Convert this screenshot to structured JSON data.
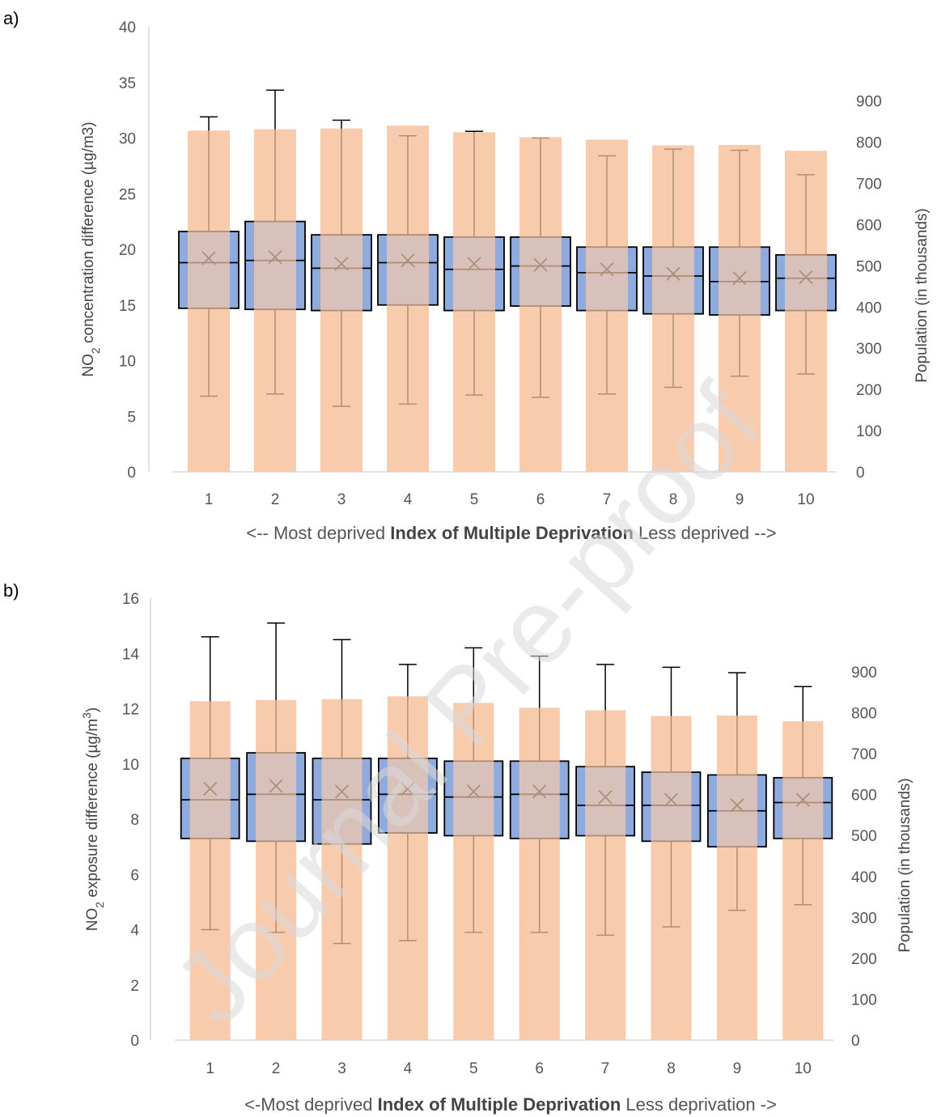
{
  "watermark": "Journal Pre-proof",
  "chart_data": [
    {
      "panel_label": "a)",
      "type": "box+bar",
      "left_axis": {
        "label_prefix": "NO",
        "label_sub": "2",
        "label_suffix": " concentration difference (µg/m3)",
        "ylim": [
          0,
          40
        ],
        "ticks": [
          0,
          5,
          10,
          15,
          20,
          25,
          30,
          35,
          40
        ]
      },
      "right_axis": {
        "label": "Population (in thousands)",
        "ylim": [
          0,
          1080
        ],
        "ticks": [
          0,
          100,
          200,
          300,
          400,
          500,
          600,
          700,
          800,
          900
        ]
      },
      "categories": [
        "1",
        "2",
        "3",
        "4",
        "5",
        "6",
        "7",
        "8",
        "9",
        "10"
      ],
      "x_caption": {
        "left": "<-- Most deprived",
        "bold": "Index of Multiple Deprivation",
        "right": "Less deprived -->"
      },
      "population": [
        828,
        831,
        833,
        840,
        824,
        812,
        806,
        792,
        793,
        779
      ],
      "box": {
        "whisker_low": [
          6.8,
          7.0,
          5.9,
          6.1,
          6.9,
          6.7,
          7.0,
          7.6,
          8.6,
          8.8
        ],
        "q1": [
          14.7,
          14.6,
          14.5,
          15.0,
          14.5,
          14.9,
          14.5,
          14.2,
          14.1,
          14.5
        ],
        "median": [
          18.8,
          19.0,
          18.3,
          18.8,
          18.2,
          18.5,
          17.9,
          17.6,
          17.1,
          17.4
        ],
        "mean": [
          19.2,
          19.3,
          18.7,
          19.0,
          18.7,
          18.6,
          18.2,
          17.8,
          17.4,
          17.5
        ],
        "q3": [
          21.6,
          22.5,
          21.3,
          21.3,
          21.1,
          21.1,
          20.2,
          20.2,
          20.2,
          19.5
        ],
        "whisker_high": [
          31.9,
          34.3,
          31.6,
          30.2,
          30.6,
          30.0,
          28.4,
          29.0,
          28.9,
          26.7
        ]
      }
    },
    {
      "panel_label": "b)",
      "type": "box+bar",
      "left_axis": {
        "label_prefix": "NO",
        "label_sub": "2",
        "label_suffix": " exposure difference (µg/m",
        "label_sup": "3",
        "label_end": ")",
        "ylim": [
          0,
          16
        ],
        "ticks": [
          0,
          2,
          4,
          6,
          8,
          10,
          12,
          14,
          16
        ]
      },
      "right_axis": {
        "label": "Population (in thousands)",
        "ylim": [
          0,
          1080
        ],
        "ticks": [
          0,
          100,
          200,
          300,
          400,
          500,
          600,
          700,
          800,
          900
        ]
      },
      "categories": [
        "1",
        "2",
        "3",
        "4",
        "5",
        "6",
        "7",
        "8",
        "9",
        "10"
      ],
      "x_caption": {
        "left": "<-Most deprived",
        "bold": "Index of Multiple Deprivation",
        "right": "Less deprivation ->"
      },
      "population": [
        828,
        831,
        833,
        840,
        824,
        812,
        806,
        792,
        793,
        779
      ],
      "box": {
        "whisker_low": [
          4.0,
          3.9,
          3.5,
          3.6,
          3.9,
          3.9,
          3.8,
          4.1,
          4.7,
          4.9
        ],
        "q1": [
          7.3,
          7.2,
          7.1,
          7.5,
          7.4,
          7.3,
          7.4,
          7.2,
          7.0,
          7.3
        ],
        "median": [
          8.7,
          8.9,
          8.7,
          8.9,
          8.8,
          8.9,
          8.5,
          8.5,
          8.3,
          8.6
        ],
        "mean": [
          9.1,
          9.2,
          9.0,
          9.1,
          9.0,
          9.0,
          8.8,
          8.7,
          8.5,
          8.7
        ],
        "q3": [
          10.2,
          10.4,
          10.2,
          10.2,
          10.1,
          10.1,
          9.9,
          9.7,
          9.6,
          9.5
        ],
        "whisker_high": [
          14.6,
          15.1,
          14.5,
          13.6,
          14.2,
          13.9,
          13.6,
          13.5,
          13.3,
          12.8
        ]
      }
    }
  ]
}
